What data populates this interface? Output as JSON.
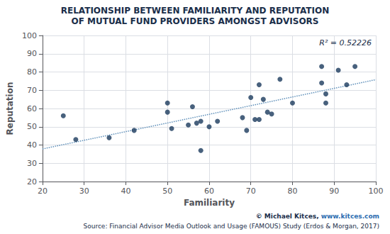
{
  "chart_data": {
    "type": "scatter",
    "title": "RELATIONSHIP BETWEEN FAMILIARITY AND REPUTATION",
    "subtitle": "OF MUTUAL FUND PROVIDERS AMONGST ADVISORS",
    "x_label": "Familiarity",
    "y_label": "Reputation",
    "annotations": [
      {
        "text": "R² = 0.52226"
      },
      {
        "text": "© Michael Kitces, "
      },
      {
        "text": "www.kitces.com",
        "color": "#2b6cb0"
      },
      {
        "text": "Source: Financial Advisor Media Outlook and Usage (FAMOUS) Study (Erdos & Morgan, 2017)"
      }
    ],
    "xlim": [
      20,
      100
    ],
    "ylim": [
      20,
      100
    ],
    "xticks": [
      20,
      30,
      40,
      50,
      60,
      70,
      80,
      90,
      100
    ],
    "yticks": [
      20,
      30,
      40,
      50,
      60,
      70,
      80,
      90,
      100
    ],
    "grid": true,
    "series": [
      {
        "type": "scatter",
        "color": "#1a3a5c",
        "marker": "circle",
        "x": [
          25,
          28,
          36,
          42,
          50,
          50,
          51,
          55,
          56,
          57,
          58,
          58,
          60,
          62,
          68,
          69,
          70,
          71,
          72,
          72,
          73,
          74,
          75,
          77,
          80,
          87,
          87,
          88,
          88,
          91,
          93,
          95
        ],
        "values": [
          56,
          43,
          44,
          48,
          63,
          58,
          49,
          51,
          61,
          52,
          53,
          37,
          50,
          53,
          55,
          48,
          66,
          54,
          54,
          73,
          65,
          58,
          57,
          76,
          63,
          74,
          83,
          68,
          63,
          81,
          73,
          83
        ]
      },
      {
        "type": "line",
        "color": "#5b8db8",
        "line_style": "dotted",
        "x": [
          20,
          100
        ],
        "values": [
          37.84795,
          75.78384
        ]
      }
    ]
  }
}
